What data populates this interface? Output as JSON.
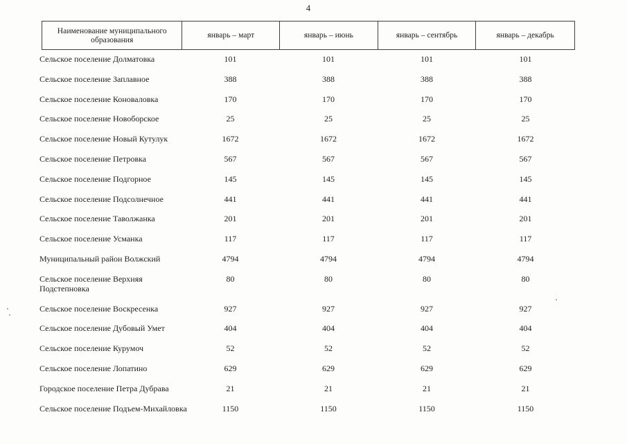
{
  "page": {
    "number": "4"
  },
  "table": {
    "columns": [
      {
        "label": "Наименование муниципального образования"
      },
      {
        "label": "январь – март"
      },
      {
        "label": "январь – июнь"
      },
      {
        "label": "январь – сентябрь"
      },
      {
        "label": "январь – декабрь"
      }
    ],
    "rows": [
      {
        "name": "Сельское поселение Долматовка",
        "values": [
          "101",
          "101",
          "101",
          "101"
        ]
      },
      {
        "name": "Сельское поселение Заплавное",
        "values": [
          "388",
          "388",
          "388",
          "388"
        ]
      },
      {
        "name": "Сельское поселение Коноваловка",
        "values": [
          "170",
          "170",
          "170",
          "170"
        ]
      },
      {
        "name": "Сельское поселение Новоборское",
        "values": [
          "25",
          "25",
          "25",
          "25"
        ]
      },
      {
        "name": "Сельское поселение Новый Кутулук",
        "values": [
          "1672",
          "1672",
          "1672",
          "1672"
        ]
      },
      {
        "name": "Сельское поселение Петровка",
        "values": [
          "567",
          "567",
          "567",
          "567"
        ]
      },
      {
        "name": "Сельское поселение Подгорное",
        "values": [
          "145",
          "145",
          "145",
          "145"
        ]
      },
      {
        "name": "Сельское поселение Подсолнечное",
        "values": [
          "441",
          "441",
          "441",
          "441"
        ]
      },
      {
        "name": "Сельское поселение Таволжанка",
        "values": [
          "201",
          "201",
          "201",
          "201"
        ]
      },
      {
        "name": "Сельское поселение Усманка",
        "values": [
          "117",
          "117",
          "117",
          "117"
        ]
      },
      {
        "name": "Муниципальный район Волжский",
        "values": [
          "4794",
          "4794",
          "4794",
          "4794"
        ]
      },
      {
        "name": "Сельское поселение Верхняя\nПодстепновка",
        "values": [
          "80",
          "80",
          "80",
          "80"
        ]
      },
      {
        "name": "Сельское поселение Воскресенка",
        "values": [
          "927",
          "927",
          "927",
          "927"
        ]
      },
      {
        "name": "Сельское поселение Дубовый Умет",
        "values": [
          "404",
          "404",
          "404",
          "404"
        ]
      },
      {
        "name": "Сельское поселение Курумоч",
        "values": [
          "52",
          "52",
          "52",
          "52"
        ]
      },
      {
        "name": "Сельское поселение Лопатино",
        "values": [
          "629",
          "629",
          "629",
          "629"
        ]
      },
      {
        "name": "Городское поселение Петра Дубрава",
        "values": [
          "21",
          "21",
          "21",
          "21"
        ]
      },
      {
        "name": "Сельское поселение Подъем-Михайловка",
        "values": [
          "1150",
          "1150",
          "1150",
          "1150"
        ]
      }
    ]
  }
}
